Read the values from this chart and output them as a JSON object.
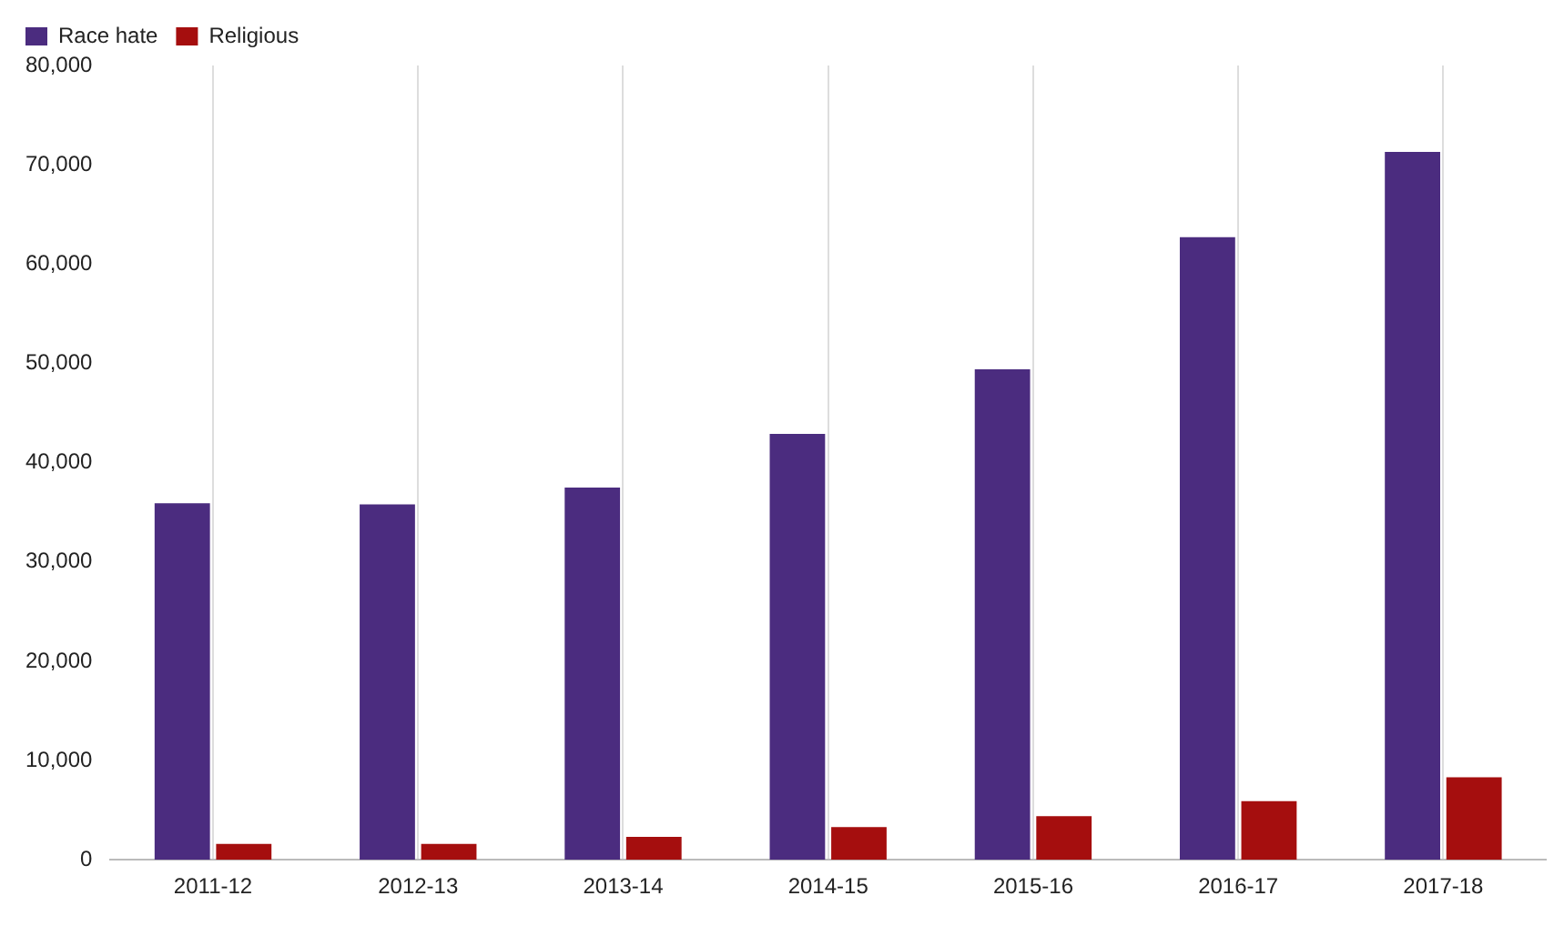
{
  "chart_data": {
    "type": "bar",
    "categories": [
      "2011-12",
      "2012-13",
      "2013-14",
      "2014-15",
      "2015-16",
      "2016-17",
      "2017-18"
    ],
    "series": [
      {
        "name": "Race hate",
        "color": "#4b2c7f",
        "values": [
          35900,
          35800,
          37500,
          42900,
          49400,
          62700,
          71300
        ]
      },
      {
        "name": "Religious",
        "color": "#a50e0e",
        "values": [
          1600,
          1600,
          2300,
          3300,
          4400,
          5900,
          8300
        ]
      }
    ],
    "ylim": [
      0,
      80000
    ],
    "yticks": [
      {
        "value": 0,
        "label": "0"
      },
      {
        "value": 10000,
        "label": "10,000"
      },
      {
        "value": 20000,
        "label": "20,000"
      },
      {
        "value": 30000,
        "label": "30,000"
      },
      {
        "value": 40000,
        "label": "40,000"
      },
      {
        "value": 50000,
        "label": "50,000"
      },
      {
        "value": 60000,
        "label": "60,000"
      },
      {
        "value": 70000,
        "label": "70,000"
      },
      {
        "value": 80000,
        "label": "80,000"
      }
    ],
    "grid": "x",
    "legend": "top left"
  }
}
